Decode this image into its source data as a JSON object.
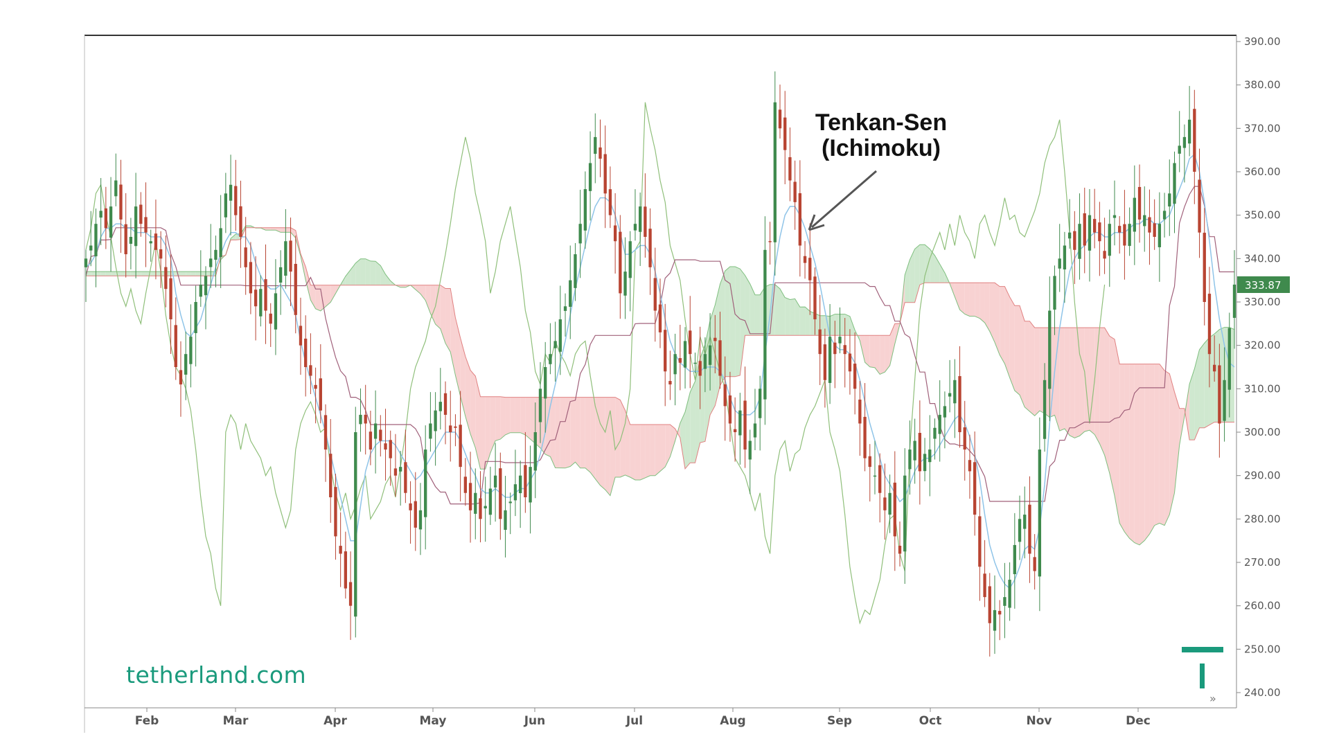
{
  "brand": {
    "text": "tetherland.com",
    "color": "#1a9a7c"
  },
  "chart_data": {
    "type": "candlestick",
    "indicator": "Ichimoku",
    "annotation": {
      "line1": "Tenkan-Sen",
      "line2": "(Ichimoku)"
    },
    "ylim": [
      236,
      394
    ],
    "y_ticks": [
      "390.00",
      "380.00",
      "370.00",
      "360.00",
      "350.00",
      "340.00",
      "330.00",
      "320.00",
      "310.00",
      "300.00",
      "290.00",
      "280.00",
      "270.00",
      "260.00",
      "250.00",
      "240.00"
    ],
    "months": [
      "Feb",
      "Mar",
      "Apr",
      "May",
      "Jun",
      "Jul",
      "Aug",
      "Sep",
      "Oct",
      "Nov",
      "Dec"
    ],
    "last_price": "333.87",
    "colors": {
      "up": "#3f8a4d",
      "down": "#b84432",
      "tenkan": "#8fc4e8",
      "kijun": "#a0607a",
      "chikou": "#8fbf7a",
      "kumo_bull": "#cfe8cf",
      "kumo_bear": "#f8d2d2",
      "senkou_a": "#7fbf7f",
      "senkou_b": "#e08080",
      "price_tag": "#3f8a4d"
    },
    "closes": [
      340,
      343,
      348,
      351,
      347,
      352,
      358,
      349,
      341,
      345,
      352,
      348,
      346,
      344,
      342,
      340,
      333,
      326,
      315,
      311,
      318,
      322,
      330,
      334,
      336,
      340,
      342,
      347,
      355,
      357,
      350,
      345,
      338,
      332,
      329,
      333,
      328,
      325,
      332,
      338,
      344,
      337,
      327,
      320,
      315,
      313,
      310,
      305,
      296,
      285,
      276,
      272,
      264,
      260,
      300,
      304,
      302,
      296,
      302,
      298,
      296,
      294,
      290,
      292,
      286,
      282,
      278,
      282,
      296,
      302,
      305,
      307,
      304,
      300,
      301,
      292,
      286,
      282,
      286,
      280,
      283,
      287,
      290,
      280,
      282,
      284,
      288,
      290,
      285,
      292,
      300,
      310,
      315,
      318,
      321,
      326,
      329,
      335,
      341,
      348,
      356,
      362,
      368,
      363,
      355,
      350,
      344,
      332,
      337,
      344,
      348,
      352,
      345,
      338,
      328,
      323,
      314,
      311,
      318,
      316,
      321,
      318,
      316,
      313,
      318,
      320,
      321,
      313,
      306,
      302,
      300,
      305,
      296,
      298,
      302,
      310,
      342,
      344,
      376,
      370,
      365,
      358,
      353,
      343,
      339,
      335,
      326,
      318,
      312,
      322,
      318,
      322,
      318,
      314,
      310,
      302,
      294,
      292,
      290,
      286,
      282,
      286,
      276,
      272,
      290,
      296,
      298,
      291,
      295,
      296,
      301,
      304,
      306,
      309,
      312,
      300,
      296,
      291,
      281,
      269,
      262,
      256,
      259,
      258,
      262,
      266,
      274,
      280,
      281,
      272,
      268,
      296,
      312,
      328,
      336,
      340,
      343,
      346,
      342,
      348,
      343,
      350,
      346,
      344,
      340,
      348,
      350,
      346,
      343,
      348,
      354,
      349,
      350,
      346,
      345,
      348,
      351,
      355,
      362,
      366,
      368,
      372,
      360,
      346,
      330,
      318,
      314,
      302,
      312,
      324,
      334
    ],
    "tenkan": [
      338,
      339,
      341,
      345,
      347,
      347,
      348,
      348,
      347,
      347,
      346,
      346,
      346,
      345,
      345,
      345,
      343,
      340,
      332,
      327,
      323,
      322,
      324,
      326,
      330,
      334,
      338,
      341,
      344,
      346,
      346,
      345,
      345,
      343,
      339,
      336,
      334,
      333,
      333,
      334,
      332,
      330,
      327,
      321,
      316,
      312,
      308,
      304,
      300,
      295,
      290,
      285,
      280,
      275,
      275,
      283,
      291,
      295,
      297,
      298,
      298,
      298,
      297,
      295,
      293,
      291,
      289,
      290,
      292,
      294,
      296,
      298,
      300,
      300,
      300,
      298,
      295,
      292,
      290,
      287,
      286,
      286,
      287,
      286,
      285,
      285,
      286,
      287,
      287,
      289,
      291,
      295,
      300,
      306,
      311,
      316,
      321,
      327,
      333,
      338,
      343,
      348,
      352,
      354,
      354,
      353,
      350,
      346,
      341,
      341,
      342,
      343,
      343,
      341,
      337,
      332,
      326,
      321,
      318,
      316,
      315,
      314,
      314,
      314,
      315,
      315,
      315,
      314,
      312,
      308,
      305,
      304,
      304,
      304,
      305,
      308,
      318,
      327,
      338,
      345,
      350,
      352,
      352,
      350,
      347,
      343,
      339,
      334,
      328,
      322,
      320,
      319,
      319,
      318,
      316,
      312,
      307,
      302,
      298,
      294,
      290,
      288,
      286,
      284,
      285,
      288,
      291,
      293,
      294,
      294,
      295,
      297,
      299,
      301,
      303,
      304,
      302,
      299,
      295,
      289,
      281,
      274,
      270,
      267,
      265,
      264,
      266,
      269,
      273,
      274,
      273,
      278,
      288,
      302,
      314,
      324,
      331,
      337,
      340,
      342,
      343,
      345,
      346,
      346,
      345,
      345,
      346,
      346,
      346,
      347,
      348,
      348,
      349,
      349,
      348,
      348,
      349,
      350,
      353,
      356,
      359,
      363,
      364,
      360,
      353,
      344,
      334,
      326,
      320,
      316,
      315
    ]
  }
}
